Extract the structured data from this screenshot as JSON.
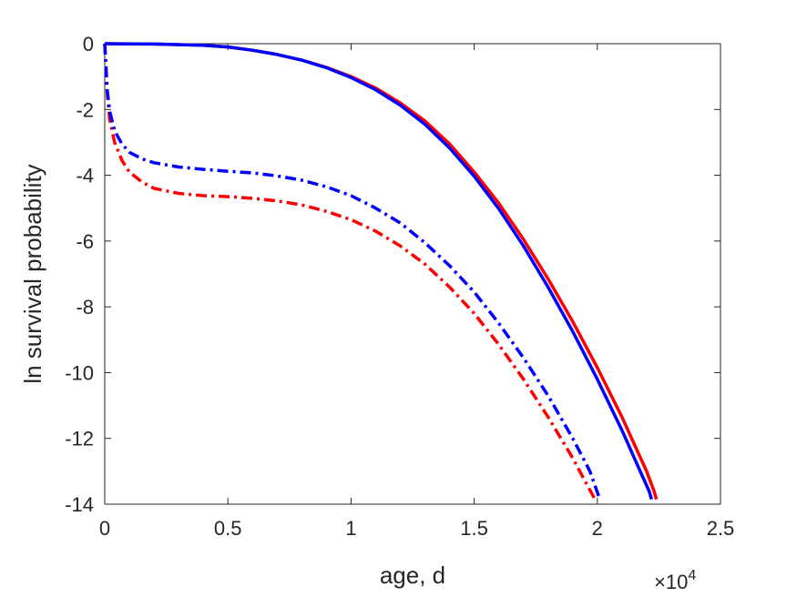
{
  "chart_data": {
    "type": "line",
    "xlabel": "age, d",
    "ylabel": "ln survival probability",
    "x_exponent_label": {
      "times": "×10",
      "power": "4"
    },
    "xlim": [
      0,
      25000
    ],
    "ylim": [
      -14,
      0
    ],
    "x_ticks": [
      0,
      5000,
      10000,
      15000,
      20000,
      25000
    ],
    "x_tick_labels": [
      "0",
      "0.5",
      "1",
      "1.5",
      "2",
      "2.5"
    ],
    "y_ticks": [
      0,
      -2,
      -4,
      -6,
      -8,
      -10,
      -12,
      -14
    ],
    "y_tick_labels": [
      "0",
      "-2",
      "-4",
      "-6",
      "-8",
      "-10",
      "-12",
      "-14"
    ],
    "grid": false,
    "series": [
      {
        "color": "#ff0000",
        "style": "solid",
        "x": [
          0,
          2000,
          4000,
          5000,
          6000,
          7000,
          8000,
          9000,
          10000,
          11000,
          12000,
          13000,
          14000,
          15000,
          16000,
          17000,
          18000,
          19000,
          20000,
          21000,
          22000,
          22300,
          22400
        ],
        "y": [
          0,
          -0.01,
          -0.05,
          -0.1,
          -0.2,
          -0.33,
          -0.5,
          -0.72,
          -1.0,
          -1.35,
          -1.8,
          -2.35,
          -3.05,
          -3.9,
          -4.85,
          -5.95,
          -7.15,
          -8.45,
          -9.85,
          -11.35,
          -13.0,
          -13.6,
          -13.85
        ]
      },
      {
        "color": "#0000ff",
        "style": "solid",
        "x": [
          0,
          2000,
          4000,
          5000,
          6000,
          7000,
          8000,
          9000,
          10000,
          11000,
          12000,
          13000,
          14000,
          15000,
          16000,
          17000,
          18000,
          19000,
          20000,
          21000,
          21800,
          22100,
          22200
        ],
        "y": [
          0,
          -0.01,
          -0.05,
          -0.1,
          -0.2,
          -0.33,
          -0.5,
          -0.73,
          -1.03,
          -1.4,
          -1.87,
          -2.45,
          -3.17,
          -4.03,
          -5.02,
          -6.15,
          -7.4,
          -8.75,
          -10.2,
          -11.75,
          -13.1,
          -13.6,
          -13.85
        ]
      },
      {
        "color": "#ff0000",
        "style": "dashdot",
        "x": [
          0,
          100,
          200,
          400,
          700,
          1000,
          1500,
          2000,
          3000,
          4000,
          5000,
          6000,
          7000,
          8000,
          9000,
          10000,
          11000,
          12000,
          13000,
          14000,
          15000,
          16000,
          17000,
          18000,
          19000,
          19500,
          19900
        ],
        "y": [
          0,
          -1.5,
          -2.3,
          -3.0,
          -3.55,
          -3.9,
          -4.2,
          -4.4,
          -4.55,
          -4.62,
          -4.65,
          -4.7,
          -4.78,
          -4.9,
          -5.1,
          -5.35,
          -5.7,
          -6.15,
          -6.7,
          -7.4,
          -8.2,
          -9.15,
          -10.2,
          -11.35,
          -12.6,
          -13.3,
          -13.85
        ]
      },
      {
        "color": "#0000ff",
        "style": "dashdot",
        "x": [
          0,
          100,
          200,
          400,
          700,
          1000,
          1500,
          2000,
          3000,
          4000,
          5000,
          6000,
          7000,
          8000,
          9000,
          10000,
          11000,
          12000,
          13000,
          14000,
          15000,
          16000,
          17000,
          18000,
          19000,
          19700,
          20100
        ],
        "y": [
          0,
          -1.4,
          -2.05,
          -2.65,
          -3.05,
          -3.3,
          -3.5,
          -3.62,
          -3.75,
          -3.82,
          -3.88,
          -3.93,
          -4.02,
          -4.15,
          -4.35,
          -4.62,
          -5.0,
          -5.45,
          -6.05,
          -6.75,
          -7.55,
          -8.5,
          -9.55,
          -10.7,
          -12.0,
          -13.0,
          -13.85
        ]
      }
    ]
  }
}
